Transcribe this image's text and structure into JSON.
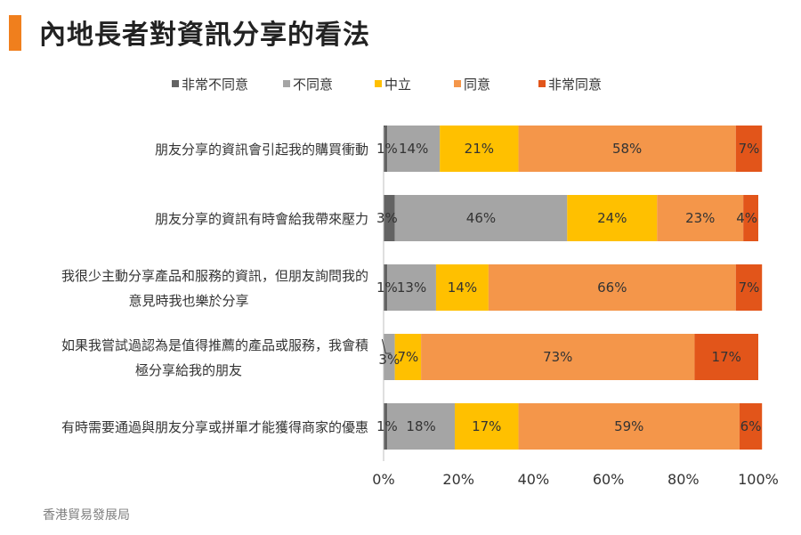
{
  "page": {
    "title": "內地長者對資訊分享的看法",
    "source": "香港貿易發展局"
  },
  "colors": {
    "accent": "#f07f1d"
  },
  "chart_data": {
    "type": "bar",
    "orientation": "horizontal",
    "stacked": true,
    "title": "",
    "xlabel": "",
    "ylabel": "",
    "xlim": [
      0,
      100
    ],
    "x_ticks": [
      "0%",
      "20%",
      "40%",
      "60%",
      "80%",
      "100%"
    ],
    "grid": false,
    "legend_position": "top",
    "categories": [
      [
        "朋友分享的資訊會引起我的購買衝動"
      ],
      [
        "朋友分享的資訊有時會給我帶來壓力"
      ],
      [
        "我很少主動分享產品和服務的資訊，但朋友詢問我的",
        "意見時我也樂於分享"
      ],
      [
        "如果我嘗試過認為是值得推薦的產品或服務，我會積",
        "極分享給我的朋友"
      ],
      [
        "有時需要通過與朋友分享或拼單才能獲得商家的優惠"
      ]
    ],
    "series": [
      {
        "name": "非常不同意",
        "color": "#636363",
        "values": [
          1,
          3,
          1,
          0,
          1
        ]
      },
      {
        "name": "不同意",
        "color": "#a5a5a5",
        "values": [
          14,
          46,
          13,
          3,
          18
        ]
      },
      {
        "name": "中立",
        "color": "#ffc000",
        "values": [
          21,
          24,
          14,
          7,
          17
        ]
      },
      {
        "name": "同意",
        "color": "#f4964a",
        "values": [
          58,
          23,
          66,
          73,
          59
        ]
      },
      {
        "name": "非常同意",
        "color": "#e2551a",
        "values": [
          7,
          4,
          7,
          17,
          6
        ]
      }
    ],
    "value_suffix": "%"
  }
}
